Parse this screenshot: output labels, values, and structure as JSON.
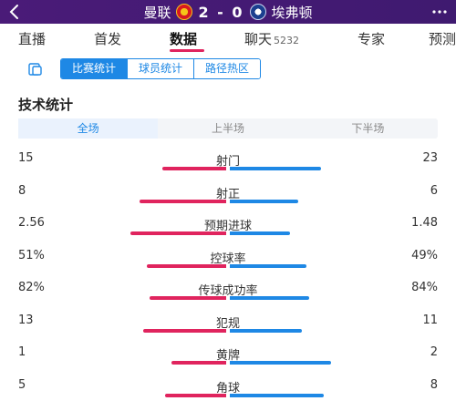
{
  "header": {
    "home_team": "曼联",
    "away_team": "埃弗顿",
    "score": "2 - 0"
  },
  "tabs": [
    {
      "label": "直播"
    },
    {
      "label": "首发"
    },
    {
      "label": "数据"
    },
    {
      "label": "聊天",
      "badge": "5232"
    },
    {
      "label": "专家"
    },
    {
      "label": "预测"
    }
  ],
  "segments": [
    {
      "label": "比赛统计"
    },
    {
      "label": "球员统计"
    },
    {
      "label": "路径热区"
    }
  ],
  "section_title": "技术统计",
  "periods": [
    {
      "label": "全场"
    },
    {
      "label": "上半场"
    },
    {
      "label": "下半场"
    }
  ],
  "stats": [
    {
      "name": "射门",
      "home": "15",
      "away": "23",
      "home_share": 0.4,
      "away_share": 0.6
    },
    {
      "name": "射正",
      "home": "8",
      "away": "6",
      "home_share": 0.57,
      "away_share": 0.43
    },
    {
      "name": "预期进球",
      "home": "2.56",
      "away": "1.48",
      "home_share": 0.63,
      "away_share": 0.37
    },
    {
      "name": "控球率",
      "home": "51%",
      "away": "49%",
      "home_share": 0.51,
      "away_share": 0.49
    },
    {
      "name": "传球成功率",
      "home": "82%",
      "away": "84%",
      "home_share": 0.49,
      "away_share": 0.51
    },
    {
      "name": "犯规",
      "home": "13",
      "away": "11",
      "home_share": 0.54,
      "away_share": 0.46
    },
    {
      "name": "黄牌",
      "home": "1",
      "away": "2",
      "home_share": 0.33,
      "away_share": 0.67
    },
    {
      "name": "角球",
      "home": "5",
      "away": "8",
      "home_share": 0.38,
      "away_share": 0.62
    }
  ],
  "colors": {
    "header_bg": "#4a1b78",
    "home_bar": "#e0245e",
    "away_bar": "#1e88e5",
    "accent": "#1e88e5"
  },
  "icons": {
    "back": "chevron-left-icon",
    "more": "more-icon",
    "segment": "stats-toggle-icon"
  }
}
